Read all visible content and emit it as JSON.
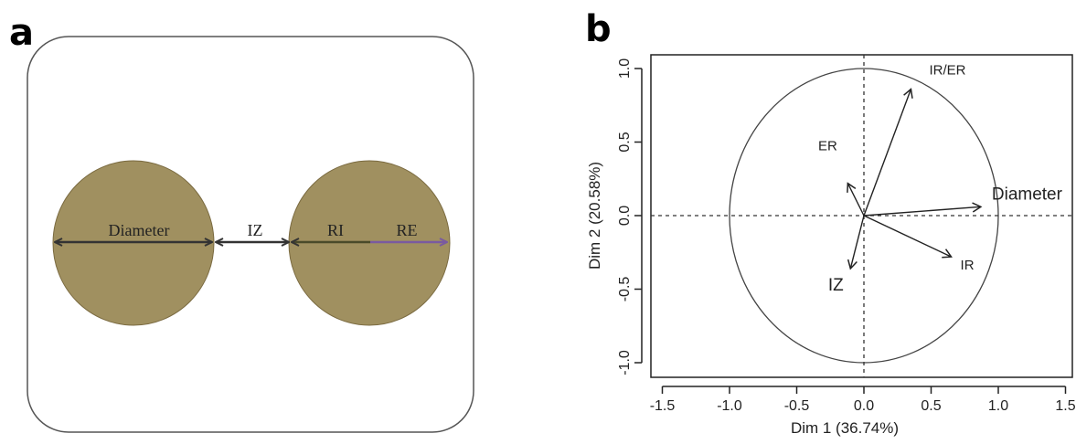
{
  "panel_a": {
    "letter": "a",
    "labels": {
      "diameter": "Diameter",
      "iz": "IZ",
      "ri": "RI",
      "re": "RE"
    },
    "colors": {
      "circle_fill": "#a09060",
      "arrow_dark": "#333333",
      "arrow_ri": "#4a4a2a",
      "arrow_re": "#7a5aa0"
    }
  },
  "panel_b": {
    "letter": "b"
  },
  "chart_data": {
    "type": "scatter",
    "subtype": "PCA correlation circle",
    "xlabel": "Dim 1 (36.74%)",
    "ylabel": "Dim 2 (20.58%)",
    "xlim": [
      -1.5,
      1.5
    ],
    "ylim": [
      -1.0,
      1.0
    ],
    "xticks": [
      "-1.5",
      "-1.0",
      "-0.5",
      "0.0",
      "0.5",
      "1.0",
      "1.5"
    ],
    "yticks": [
      "-1.0",
      "-0.5",
      "0.0",
      "0.5",
      "1.0"
    ],
    "circle_radius": 1.0,
    "reference_lines": "dashed at x=0 and y=0",
    "vectors": [
      {
        "label": "IR/ER",
        "x": 0.35,
        "y": 0.86
      },
      {
        "label": "ER",
        "x": -0.12,
        "y": 0.22
      },
      {
        "label": "Diameter",
        "x": 0.87,
        "y": 0.06
      },
      {
        "label": "IR",
        "x": 0.65,
        "y": -0.28
      },
      {
        "label": "IZ",
        "x": -0.1,
        "y": -0.36
      }
    ]
  }
}
